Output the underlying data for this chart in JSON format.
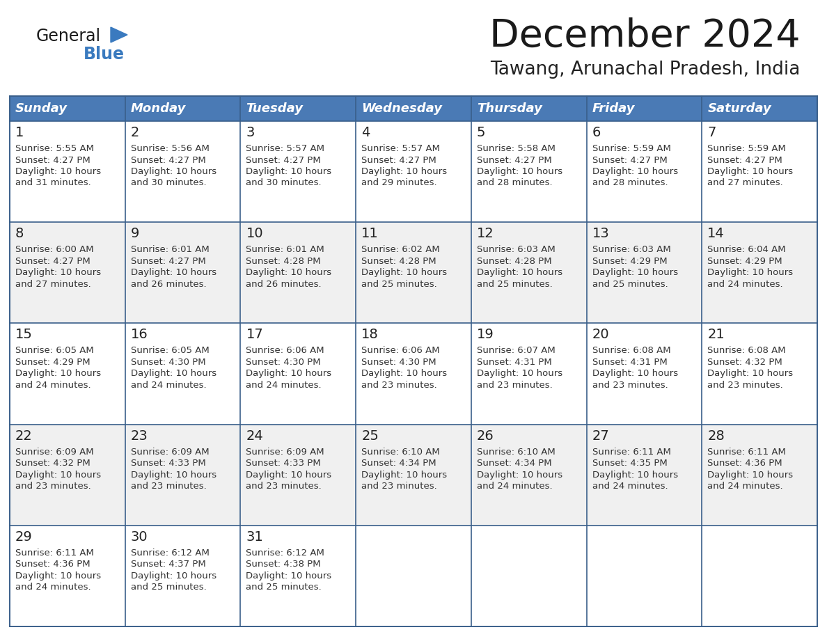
{
  "title": "December 2024",
  "subtitle": "Tawang, Arunachal Pradesh, India",
  "days_of_week": [
    "Sunday",
    "Monday",
    "Tuesday",
    "Wednesday",
    "Thursday",
    "Friday",
    "Saturday"
  ],
  "header_bg": "#4a7ab5",
  "header_text": "#ffffff",
  "cell_bg_odd": "#ffffff",
  "cell_bg_even": "#f0f0f0",
  "border_color": "#3a5f8a",
  "day_num_color": "#222222",
  "content_color": "#333333",
  "title_color": "#1a1a1a",
  "subtitle_color": "#222222",
  "logo_general_color": "#1a1a1a",
  "logo_blue_color": "#3a7abf",
  "calendar_data": [
    [
      {
        "day": 1,
        "sunrise": "5:55 AM",
        "sunset": "4:27 PM",
        "daylight_suffix": "31 minutes."
      },
      {
        "day": 2,
        "sunrise": "5:56 AM",
        "sunset": "4:27 PM",
        "daylight_suffix": "30 minutes."
      },
      {
        "day": 3,
        "sunrise": "5:57 AM",
        "sunset": "4:27 PM",
        "daylight_suffix": "30 minutes."
      },
      {
        "day": 4,
        "sunrise": "5:57 AM",
        "sunset": "4:27 PM",
        "daylight_suffix": "29 minutes."
      },
      {
        "day": 5,
        "sunrise": "5:58 AM",
        "sunset": "4:27 PM",
        "daylight_suffix": "28 minutes."
      },
      {
        "day": 6,
        "sunrise": "5:59 AM",
        "sunset": "4:27 PM",
        "daylight_suffix": "28 minutes."
      },
      {
        "day": 7,
        "sunrise": "5:59 AM",
        "sunset": "4:27 PM",
        "daylight_suffix": "27 minutes."
      }
    ],
    [
      {
        "day": 8,
        "sunrise": "6:00 AM",
        "sunset": "4:27 PM",
        "daylight_suffix": "27 minutes."
      },
      {
        "day": 9,
        "sunrise": "6:01 AM",
        "sunset": "4:27 PM",
        "daylight_suffix": "26 minutes."
      },
      {
        "day": 10,
        "sunrise": "6:01 AM",
        "sunset": "4:28 PM",
        "daylight_suffix": "26 minutes."
      },
      {
        "day": 11,
        "sunrise": "6:02 AM",
        "sunset": "4:28 PM",
        "daylight_suffix": "25 minutes."
      },
      {
        "day": 12,
        "sunrise": "6:03 AM",
        "sunset": "4:28 PM",
        "daylight_suffix": "25 minutes."
      },
      {
        "day": 13,
        "sunrise": "6:03 AM",
        "sunset": "4:29 PM",
        "daylight_suffix": "25 minutes."
      },
      {
        "day": 14,
        "sunrise": "6:04 AM",
        "sunset": "4:29 PM",
        "daylight_suffix": "24 minutes."
      }
    ],
    [
      {
        "day": 15,
        "sunrise": "6:05 AM",
        "sunset": "4:29 PM",
        "daylight_suffix": "24 minutes."
      },
      {
        "day": 16,
        "sunrise": "6:05 AM",
        "sunset": "4:30 PM",
        "daylight_suffix": "24 minutes."
      },
      {
        "day": 17,
        "sunrise": "6:06 AM",
        "sunset": "4:30 PM",
        "daylight_suffix": "24 minutes."
      },
      {
        "day": 18,
        "sunrise": "6:06 AM",
        "sunset": "4:30 PM",
        "daylight_suffix": "23 minutes."
      },
      {
        "day": 19,
        "sunrise": "6:07 AM",
        "sunset": "4:31 PM",
        "daylight_suffix": "23 minutes."
      },
      {
        "day": 20,
        "sunrise": "6:08 AM",
        "sunset": "4:31 PM",
        "daylight_suffix": "23 minutes."
      },
      {
        "day": 21,
        "sunrise": "6:08 AM",
        "sunset": "4:32 PM",
        "daylight_suffix": "23 minutes."
      }
    ],
    [
      {
        "day": 22,
        "sunrise": "6:09 AM",
        "sunset": "4:32 PM",
        "daylight_suffix": "23 minutes."
      },
      {
        "day": 23,
        "sunrise": "6:09 AM",
        "sunset": "4:33 PM",
        "daylight_suffix": "23 minutes."
      },
      {
        "day": 24,
        "sunrise": "6:09 AM",
        "sunset": "4:33 PM",
        "daylight_suffix": "23 minutes."
      },
      {
        "day": 25,
        "sunrise": "6:10 AM",
        "sunset": "4:34 PM",
        "daylight_suffix": "23 minutes."
      },
      {
        "day": 26,
        "sunrise": "6:10 AM",
        "sunset": "4:34 PM",
        "daylight_suffix": "24 minutes."
      },
      {
        "day": 27,
        "sunrise": "6:11 AM",
        "sunset": "4:35 PM",
        "daylight_suffix": "24 minutes."
      },
      {
        "day": 28,
        "sunrise": "6:11 AM",
        "sunset": "4:36 PM",
        "daylight_suffix": "24 minutes."
      }
    ],
    [
      {
        "day": 29,
        "sunrise": "6:11 AM",
        "sunset": "4:36 PM",
        "daylight_suffix": "24 minutes."
      },
      {
        "day": 30,
        "sunrise": "6:12 AM",
        "sunset": "4:37 PM",
        "daylight_suffix": "25 minutes."
      },
      {
        "day": 31,
        "sunrise": "6:12 AM",
        "sunset": "4:38 PM",
        "daylight_suffix": "25 minutes."
      },
      null,
      null,
      null,
      null
    ]
  ]
}
